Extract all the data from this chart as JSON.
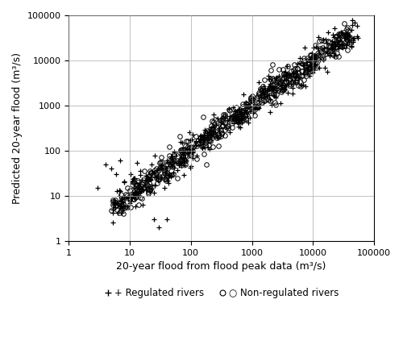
{
  "title": "",
  "xlabel": "20-year flood from flood peak data (m³/s)",
  "ylabel": "Predicted 20-year flood (m³/s)",
  "xlim": [
    1,
    100000
  ],
  "ylim": [
    1,
    100000
  ],
  "xticks": [
    1,
    10,
    100,
    1000,
    10000,
    100000
  ],
  "yticks": [
    1,
    10,
    100,
    1000,
    10000,
    100000
  ],
  "legend_regulated": "+ Regulated rivers",
  "legend_nonregulated": "○ Non-regulated rivers",
  "color": "black",
  "seed_regulated": 42,
  "seed_nonregulated": 99,
  "n_regulated": 350,
  "n_nonregulated": 550,
  "figsize": [
    5.0,
    4.23
  ],
  "dpi": 100
}
